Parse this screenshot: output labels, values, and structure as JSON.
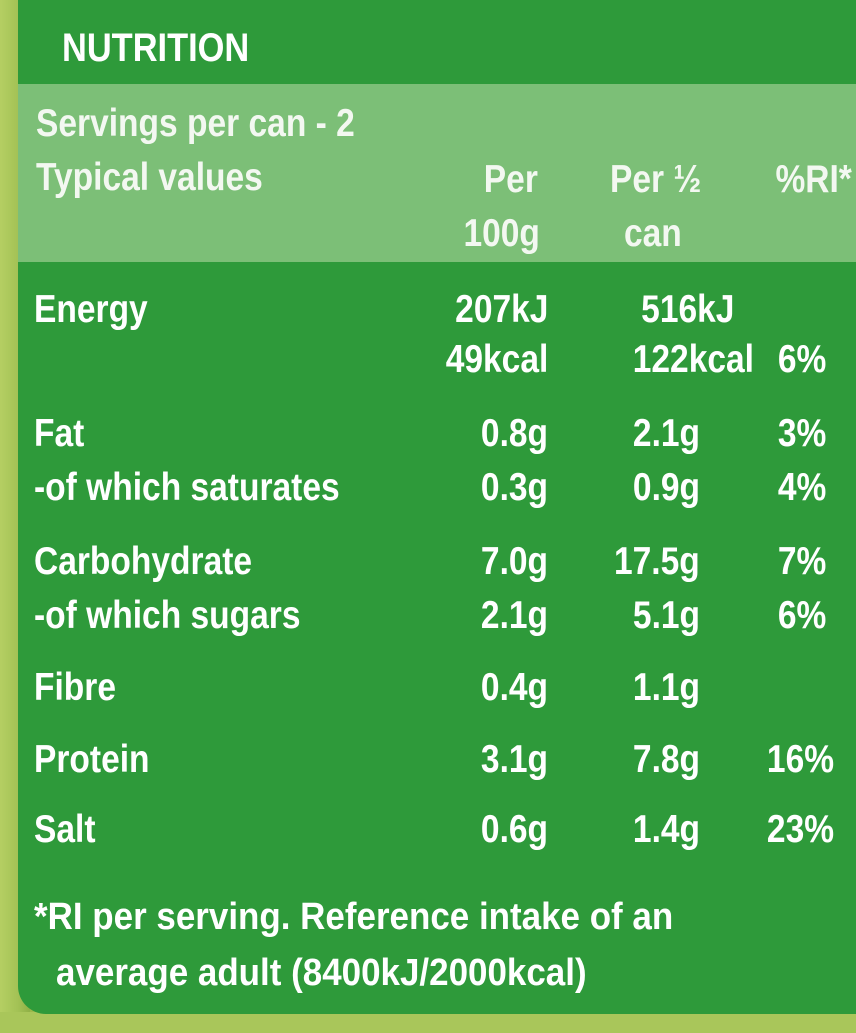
{
  "title": "NUTRITION",
  "servings": "Servings per can - 2",
  "columns": {
    "typical": "Typical values",
    "per100_line1": "Per",
    "per100_line2": "100g",
    "perhalf_line1": "Per ½",
    "perhalf_line2": "can",
    "ri": "%RI*"
  },
  "rows": {
    "energy": {
      "label": "Energy",
      "per100_kj": "207kJ",
      "per100_kcal": "49kcal",
      "perhalf_kj": "516kJ",
      "perhalf_kcal": "122kcal",
      "ri": "6%"
    },
    "fat": {
      "label": "Fat",
      "per100": "0.8g",
      "perhalf": "2.1g",
      "ri": "3%"
    },
    "saturates": {
      "label": "-of which saturates",
      "per100": "0.3g",
      "perhalf": "0.9g",
      "ri": "4%"
    },
    "carbohydrate": {
      "label": "Carbohydrate",
      "per100": "7.0g",
      "perhalf": "17.5g",
      "ri": "7%"
    },
    "sugars": {
      "label": "-of which sugars",
      "per100": "2.1g",
      "perhalf": "5.1g",
      "ri": "6%"
    },
    "fibre": {
      "label": "Fibre",
      "per100": "0.4g",
      "perhalf": "1.1g",
      "ri": ""
    },
    "protein": {
      "label": "Protein",
      "per100": "3.1g",
      "perhalf": "7.8g",
      "ri": "16%"
    },
    "salt": {
      "label": "Salt",
      "per100": "0.6g",
      "perhalf": "1.4g",
      "ri": "23%"
    }
  },
  "footnote_line1": "*RI per serving. Reference intake of an",
  "footnote_line2": "average adult (8400kJ/2000kcal)",
  "colors": {
    "panel_green": "#2e9a3a",
    "header_green": "#7cbf77",
    "edge_green": "#9ab84a",
    "text": "#ffffff"
  }
}
